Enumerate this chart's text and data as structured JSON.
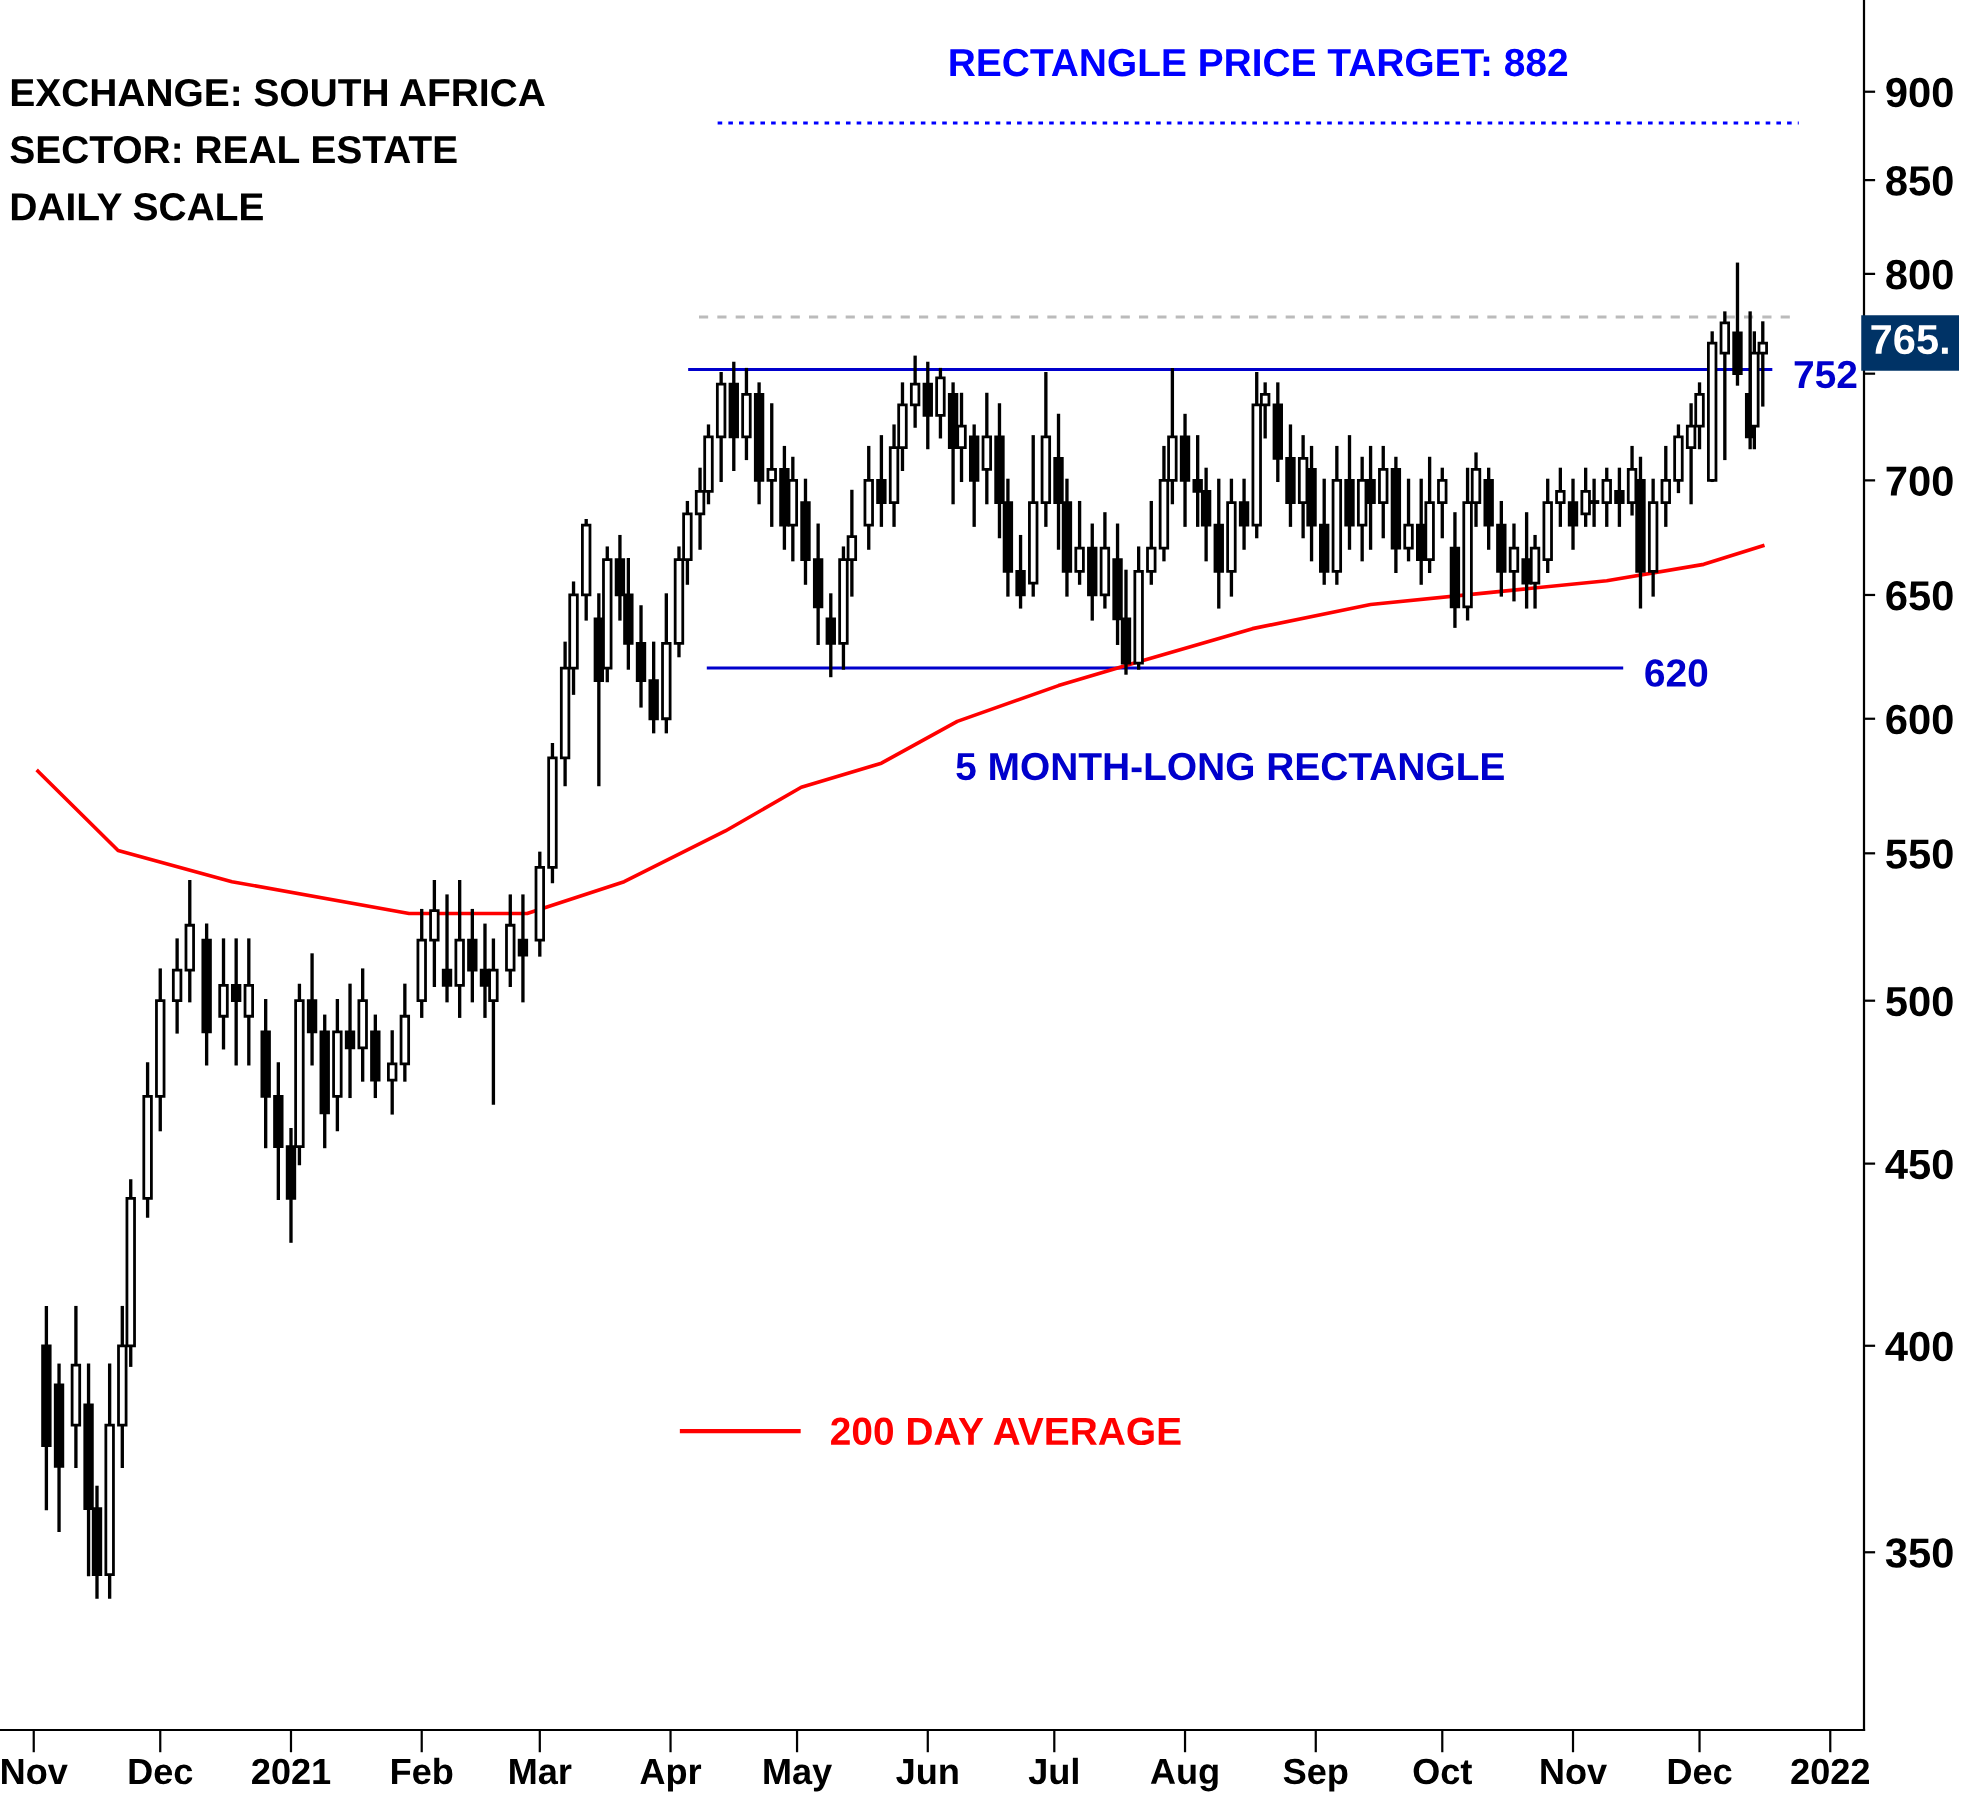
{
  "chart_data": {
    "type": "candlestick",
    "annotations": [
      "EXCHANGE: SOUTH AFRICA",
      "SECTOR: REAL ESTATE",
      "DAILY SCALE",
      "5 MONTH-LONG RECTANGLE",
      {
        "text": "765.",
        "x": "2021-12-16",
        "y": 765
      }
    ],
    "x": [
      "2020-11-04",
      "2020-11-07",
      "2020-11-11",
      "2020-11-14",
      "2020-11-16",
      "2020-11-19",
      "2020-11-22",
      "2020-11-24",
      "2020-11-28",
      "2020-12-01",
      "2020-12-05",
      "2020-12-08",
      "2020-12-12",
      "2020-12-16",
      "2020-12-19",
      "2020-12-22",
      "2020-12-26",
      "2020-12-29",
      "2021-01-01",
      "2021-01-03",
      "2021-01-06",
      "2021-01-09",
      "2021-01-12",
      "2021-01-15",
      "2021-01-18",
      "2021-01-21",
      "2021-01-25",
      "2021-01-28",
      "2021-02-01",
      "2021-02-04",
      "2021-02-07",
      "2021-02-10",
      "2021-02-13",
      "2021-02-16",
      "2021-02-18",
      "2021-02-22",
      "2021-02-25",
      "2021-03-01",
      "2021-03-04",
      "2021-03-07",
      "2021-03-09",
      "2021-03-12",
      "2021-03-15",
      "2021-03-17",
      "2021-03-20",
      "2021-03-22",
      "2021-03-25",
      "2021-03-28",
      "2021-03-31",
      "2021-04-03",
      "2021-04-05",
      "2021-04-08",
      "2021-04-10",
      "2021-04-13",
      "2021-04-16",
      "2021-04-19",
      "2021-04-22",
      "2021-04-25",
      "2021-04-28",
      "2021-04-30",
      "2021-05-03",
      "2021-05-06",
      "2021-05-09",
      "2021-05-12",
      "2021-05-14",
      "2021-05-18",
      "2021-05-21",
      "2021-05-24",
      "2021-05-26",
      "2021-05-29",
      "2021-06-01",
      "2021-06-04",
      "2021-06-07",
      "2021-06-09",
      "2021-06-12",
      "2021-06-15",
      "2021-06-18",
      "2021-06-20",
      "2021-06-23",
      "2021-06-26",
      "2021-06-29",
      "2021-07-02",
      "2021-07-04",
      "2021-07-07",
      "2021-07-10",
      "2021-07-13",
      "2021-07-16",
      "2021-07-18",
      "2021-07-21",
      "2021-07-24",
      "2021-07-27",
      "2021-07-29",
      "2021-08-01",
      "2021-08-04",
      "2021-08-06",
      "2021-08-09",
      "2021-08-12",
      "2021-08-15",
      "2021-08-18",
      "2021-08-20",
      "2021-08-23",
      "2021-08-26",
      "2021-08-29",
      "2021-08-31",
      "2021-09-03",
      "2021-09-06",
      "2021-09-09",
      "2021-09-12",
      "2021-09-14",
      "2021-09-17",
      "2021-09-20",
      "2021-09-23",
      "2021-09-26",
      "2021-09-28",
      "2021-10-01",
      "2021-10-04",
      "2021-10-07",
      "2021-10-09",
      "2021-10-12",
      "2021-10-15",
      "2021-10-18",
      "2021-10-21",
      "2021-10-23",
      "2021-10-26",
      "2021-10-29",
      "2021-11-01",
      "2021-11-04",
      "2021-11-06",
      "2021-11-09",
      "2021-11-12",
      "2021-11-15",
      "2021-11-17",
      "2021-11-20",
      "2021-11-23",
      "2021-11-26",
      "2021-11-29",
      "2021-12-01",
      "2021-12-04",
      "2021-12-07",
      "2021-12-10",
      "2021-12-13",
      "2021-12-14",
      "2021-12-16"
    ],
    "ohlc": [
      [
        400,
        410,
        360,
        375
      ],
      [
        390,
        395,
        355,
        370
      ],
      [
        380,
        410,
        370,
        395
      ],
      [
        385,
        395,
        345,
        360
      ],
      [
        360,
        365,
        340,
        345
      ],
      [
        345,
        395,
        340,
        380
      ],
      [
        380,
        410,
        370,
        400
      ],
      [
        400,
        445,
        395,
        440
      ],
      [
        440,
        480,
        435,
        470
      ],
      [
        470,
        510,
        460,
        500
      ],
      [
        500,
        520,
        490,
        510
      ],
      [
        510,
        540,
        500,
        525
      ],
      [
        520,
        525,
        480,
        490
      ],
      [
        495,
        520,
        485,
        505
      ],
      [
        505,
        520,
        480,
        500
      ],
      [
        495,
        520,
        480,
        505
      ],
      [
        490,
        500,
        455,
        470
      ],
      [
        470,
        480,
        440,
        455
      ],
      [
        455,
        460,
        428,
        440
      ],
      [
        455,
        505,
        450,
        500
      ],
      [
        500,
        515,
        480,
        490
      ],
      [
        490,
        495,
        455,
        465
      ],
      [
        470,
        500,
        460,
        490
      ],
      [
        490,
        505,
        470,
        485
      ],
      [
        485,
        510,
        475,
        500
      ],
      [
        490,
        495,
        470,
        475
      ],
      [
        475,
        490,
        465,
        480
      ],
      [
        480,
        505,
        475,
        495
      ],
      [
        500,
        530,
        495,
        520
      ],
      [
        520,
        540,
        505,
        530
      ],
      [
        510,
        535,
        500,
        505
      ],
      [
        505,
        540,
        495,
        520
      ],
      [
        520,
        530,
        500,
        510
      ],
      [
        510,
        525,
        495,
        505
      ],
      [
        500,
        520,
        468,
        510
      ],
      [
        510,
        535,
        505,
        525
      ],
      [
        520,
        535,
        500,
        515
      ],
      [
        520,
        550,
        515,
        545
      ],
      [
        545,
        590,
        540,
        585
      ],
      [
        585,
        630,
        575,
        620
      ],
      [
        620,
        655,
        610,
        650
      ],
      [
        650,
        682,
        640,
        680
      ],
      [
        640,
        650,
        575,
        615
      ],
      [
        620,
        670,
        615,
        665
      ],
      [
        665,
        675,
        640,
        650
      ],
      [
        650,
        665,
        620,
        630
      ],
      [
        630,
        645,
        605,
        615
      ],
      [
        615,
        630,
        595,
        600
      ],
      [
        600,
        650,
        595,
        630
      ],
      [
        630,
        670,
        625,
        665
      ],
      [
        665,
        690,
        655,
        685
      ],
      [
        685,
        705,
        670,
        695
      ],
      [
        695,
        725,
        690,
        720
      ],
      [
        720,
        750,
        700,
        745
      ],
      [
        745,
        755,
        705,
        720
      ],
      [
        720,
        752,
        710,
        740
      ],
      [
        740,
        745,
        690,
        700
      ],
      [
        700,
        735,
        680,
        705
      ],
      [
        705,
        715,
        670,
        680
      ],
      [
        680,
        710,
        665,
        700
      ],
      [
        690,
        700,
        655,
        665
      ],
      [
        665,
        680,
        630,
        645
      ],
      [
        640,
        650,
        617,
        630
      ],
      [
        630,
        670,
        620,
        665
      ],
      [
        665,
        695,
        650,
        675
      ],
      [
        680,
        715,
        670,
        700
      ],
      [
        700,
        720,
        680,
        690
      ],
      [
        690,
        725,
        680,
        715
      ],
      [
        715,
        745,
        705,
        735
      ],
      [
        735,
        758,
        725,
        745
      ],
      [
        745,
        755,
        715,
        730
      ],
      [
        730,
        752,
        720,
        748
      ],
      [
        740,
        745,
        690,
        715
      ],
      [
        715,
        740,
        700,
        725
      ],
      [
        720,
        725,
        680,
        700
      ],
      [
        705,
        740,
        690,
        720
      ],
      [
        720,
        735,
        675,
        690
      ],
      [
        690,
        700,
        650,
        660
      ],
      [
        660,
        675,
        645,
        650
      ],
      [
        655,
        720,
        650,
        690
      ],
      [
        690,
        750,
        680,
        720
      ],
      [
        710,
        730,
        670,
        690
      ],
      [
        690,
        700,
        650,
        660
      ],
      [
        660,
        690,
        655,
        670
      ],
      [
        670,
        680,
        640,
        650
      ],
      [
        650,
        685,
        645,
        670
      ],
      [
        665,
        680,
        630,
        640
      ],
      [
        640,
        660,
        618,
        622
      ],
      [
        622,
        670,
        620,
        660
      ],
      [
        660,
        690,
        655,
        670
      ],
      [
        670,
        715,
        665,
        700
      ],
      [
        700,
        752,
        690,
        720
      ],
      [
        720,
        730,
        680,
        700
      ],
      [
        700,
        720,
        680,
        695
      ],
      [
        695,
        705,
        665,
        680
      ],
      [
        680,
        700,
        645,
        660
      ],
      [
        660,
        700,
        650,
        690
      ],
      [
        690,
        700,
        670,
        680
      ],
      [
        680,
        750,
        675,
        735
      ],
      [
        735,
        745,
        720,
        740
      ],
      [
        735,
        745,
        700,
        710
      ],
      [
        710,
        725,
        680,
        690
      ],
      [
        690,
        720,
        675,
        710
      ],
      [
        705,
        715,
        665,
        680
      ],
      [
        680,
        700,
        655,
        660
      ],
      [
        660,
        715,
        655,
        700
      ],
      [
        700,
        720,
        670,
        680
      ],
      [
        680,
        710,
        665,
        700
      ],
      [
        700,
        715,
        670,
        690
      ],
      [
        690,
        715,
        675,
        705
      ],
      [
        705,
        710,
        660,
        670
      ],
      [
        670,
        700,
        665,
        680
      ],
      [
        680,
        700,
        655,
        665
      ],
      [
        665,
        710,
        660,
        690
      ],
      [
        690,
        705,
        675,
        700
      ],
      [
        670,
        685,
        637,
        645
      ],
      [
        645,
        705,
        640,
        690
      ],
      [
        690,
        712,
        680,
        705
      ],
      [
        700,
        705,
        670,
        680
      ],
      [
        680,
        690,
        650,
        660
      ],
      [
        660,
        680,
        648,
        670
      ],
      [
        665,
        685,
        645,
        655
      ],
      [
        655,
        675,
        645,
        670
      ],
      [
        665,
        700,
        660,
        690
      ],
      [
        690,
        705,
        680,
        695
      ],
      [
        690,
        700,
        670,
        680
      ],
      [
        685,
        705,
        680,
        695
      ],
      [
        690,
        700,
        680,
        690
      ],
      [
        690,
        705,
        680,
        700
      ],
      [
        695,
        705,
        680,
        690
      ],
      [
        690,
        715,
        685,
        705
      ],
      [
        700,
        710,
        645,
        660
      ],
      [
        660,
        700,
        650,
        690
      ],
      [
        690,
        715,
        680,
        700
      ],
      [
        700,
        725,
        695,
        720
      ],
      [
        715,
        735,
        690,
        725
      ],
      [
        725,
        745,
        715,
        740
      ],
      [
        700,
        770,
        700,
        765
      ],
      [
        760,
        780,
        710,
        775
      ],
      [
        770,
        805,
        745,
        750
      ],
      [
        740,
        780,
        715,
        720
      ],
      [
        725,
        770,
        715,
        760
      ],
      [
        760,
        775,
        735,
        765
      ]
    ],
    "series": [
      {
        "name": "200 DAY AVERAGE",
        "type": "line",
        "color": "#ff0000",
        "x": [
          "2020-11-02",
          "2020-11-21",
          "2020-12-18",
          "2021-01-29",
          "2021-02-26",
          "2021-03-21",
          "2021-04-14",
          "2021-05-02",
          "2021-05-21",
          "2021-06-08",
          "2021-07-02",
          "2021-07-20",
          "2021-08-17",
          "2021-09-14",
          "2021-10-12",
          "2021-11-09",
          "2021-12-02",
          "2021-12-16"
        ],
        "values": [
          580,
          551,
          540,
          529,
          529,
          540,
          558,
          574,
          583,
          599,
          613,
          622,
          636,
          646,
          651,
          656,
          663,
          671
        ]
      }
    ],
    "ref_lines": [
      {
        "axis": "y",
        "value": 882,
        "label": "RECTANGLE PRICE TARGET: 882",
        "color": "#0000ff",
        "line_style": "dotted"
      },
      {
        "axis": "y",
        "value": 778,
        "label": null,
        "color": "#bbbbbb",
        "line_style": "dashed"
      },
      {
        "axis": "y",
        "value": 752,
        "label": "752",
        "color": "#0000cc",
        "line_style": "solid"
      },
      {
        "axis": "y",
        "value": 620,
        "label": "620",
        "color": "#0000cc",
        "line_style": "solid"
      }
    ],
    "log": true,
    "xlim": [
      "2020-10-24",
      "2022-01-09"
    ],
    "xticks": [
      {
        "value": "2020-11-01",
        "label": "Nov"
      },
      {
        "value": "2020-12-01",
        "label": "Dec"
      },
      {
        "value": "2021-01-01",
        "label": "2021"
      },
      {
        "value": "2021-02-01",
        "label": "Feb"
      },
      {
        "value": "2021-03-01",
        "label": "Mar"
      },
      {
        "value": "2021-04-01",
        "label": "Apr"
      },
      {
        "value": "2021-05-01",
        "label": "May"
      },
      {
        "value": "2021-06-01",
        "label": "Jun"
      },
      {
        "value": "2021-07-01",
        "label": "Jul"
      },
      {
        "value": "2021-08-01",
        "label": "Aug"
      },
      {
        "value": "2021-09-01",
        "label": "Sep"
      },
      {
        "value": "2021-10-01",
        "label": "Oct"
      },
      {
        "value": "2021-11-01",
        "label": "Nov"
      },
      {
        "value": "2021-12-01",
        "label": "Dec"
      },
      {
        "value": "2022-01-01",
        "label": "2022"
      }
    ],
    "ylim": [
      312,
      955
    ],
    "yticks": [
      350,
      400,
      450,
      500,
      550,
      600,
      650,
      700,
      {
        "value": 750,
        "label": null
      },
      800,
      850,
      900
    ],
    "grid": false,
    "legend": "bottom"
  }
}
